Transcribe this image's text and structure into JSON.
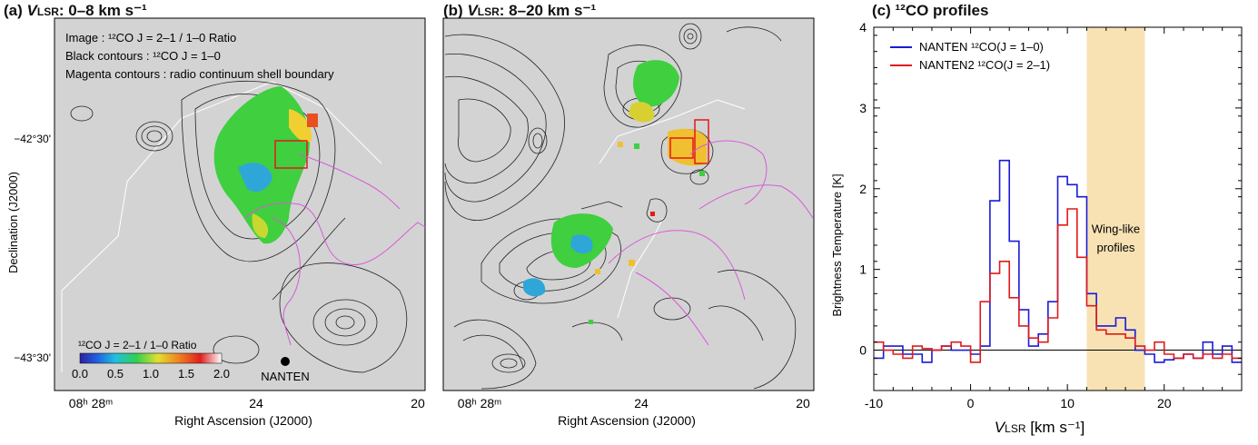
{
  "panels": {
    "a": {
      "label": "(a)",
      "vel_symbol": "V",
      "vel_sub": "LSR",
      "vel_range": ": 0–8 km s⁻¹",
      "legend_lines": [
        "Image : ¹²CO J = 2–1 / 1–0 Ratio",
        "Black contours : ¹²CO J = 1–0",
        "Magenta contours : radio continuum shell boundary"
      ],
      "colorbar_title": "¹²CO J = 2–1 / 1–0 Ratio",
      "colorbar_ticks": [
        "0.0",
        "0.5",
        "1.0",
        "1.5",
        "2.0"
      ],
      "colorbar_range": [
        0.0,
        2.0
      ],
      "marker_label": "NANTEN",
      "ylabel": "Declination (J2000)",
      "yticks": [
        "−42°30'",
        "−43°30'"
      ],
      "xticks": [
        "08ʰ 28ᵐ",
        "24",
        "20"
      ],
      "xlabel": "Right Ascension (J2000)"
    },
    "b": {
      "label": "(b)",
      "vel_symbol": "V",
      "vel_sub": "LSR",
      "vel_range": ": 8–20 km s⁻¹",
      "xticks": [
        "08ʰ 28ᵐ",
        "24",
        "20"
      ],
      "xlabel": "Right Ascension (J2000)"
    }
  },
  "colors": {
    "map_bg": "#d3d3d3",
    "contour": "#222222",
    "shell": "#d85ad8",
    "series_blue": "#1a1ad6",
    "series_red": "#e01a1a",
    "wing_band": "#f8e2b4"
  },
  "chart_data": {
    "type": "line",
    "title": "(c) ¹²CO profiles",
    "xlabel_symbol": "V",
    "xlabel_sub": "LSR",
    "xlabel_unit": " [km s⁻¹]",
    "ylabel": "Brightness Temperature [K]",
    "xlim": [
      -10,
      28
    ],
    "ylim": [
      -0.5,
      4
    ],
    "xticks": [
      -10,
      0,
      10,
      20
    ],
    "yticks": [
      0,
      1,
      2,
      3,
      4
    ],
    "legend_position": "top-left",
    "band": {
      "x0": 12,
      "x1": 18,
      "label_lines": [
        "Wing-like",
        "profiles"
      ]
    },
    "series": [
      {
        "name": "NANTEN ¹²CO(J = 1–0)",
        "style": "step",
        "x": [
          -10,
          -9,
          -8,
          -7,
          -6,
          -5,
          -4,
          -3,
          -2,
          -1,
          0,
          1,
          2,
          3,
          4,
          5,
          6,
          7,
          8,
          9,
          10,
          11,
          12,
          13,
          14,
          15,
          16,
          17,
          18,
          19,
          20,
          21,
          22,
          23,
          24,
          25,
          26,
          27
        ],
        "y": [
          -0.1,
          0.05,
          0.05,
          -0.05,
          -0.05,
          -0.15,
          0.0,
          0.05,
          0.0,
          0.0,
          -0.05,
          0.05,
          1.85,
          2.35,
          1.35,
          0.5,
          0.05,
          0.2,
          0.6,
          2.15,
          2.05,
          1.9,
          0.7,
          0.3,
          0.3,
          0.4,
          0.25,
          0.0,
          -0.05,
          -0.15,
          -0.12,
          -0.1,
          -0.05,
          -0.1,
          0.1,
          -0.05,
          0.05,
          -0.15
        ]
      },
      {
        "name": "NANTEN2 ¹²CO(J = 2–1)",
        "style": "step",
        "x": [
          -10,
          -9,
          -8,
          -7,
          -6,
          -5,
          -4,
          -3,
          -2,
          -1,
          0,
          1,
          2,
          3,
          4,
          5,
          6,
          7,
          8,
          9,
          10,
          11,
          12,
          13,
          14,
          15,
          16,
          17,
          18,
          19,
          20,
          21,
          22,
          23,
          24,
          25,
          26,
          27
        ],
        "y": [
          0.1,
          0.0,
          -0.05,
          -0.1,
          0.05,
          0.02,
          0.0,
          0.05,
          0.1,
          0.05,
          -0.15,
          0.6,
          0.95,
          1.1,
          0.65,
          0.3,
          0.15,
          0.1,
          0.4,
          1.55,
          1.75,
          1.15,
          0.55,
          0.25,
          0.2,
          0.2,
          0.15,
          0.05,
          0.0,
          0.1,
          -0.05,
          -0.1,
          -0.05,
          -0.1,
          -0.05,
          -0.1,
          -0.05,
          -0.1
        ]
      }
    ]
  }
}
